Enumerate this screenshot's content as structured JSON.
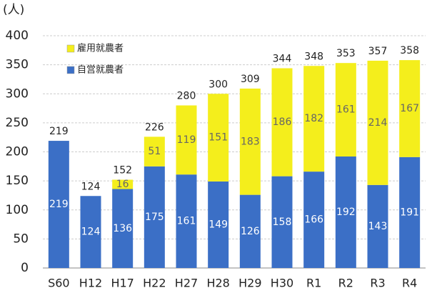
{
  "chart_data": {
    "type": "stacked_bar",
    "y_unit": "(人)",
    "categories": [
      "S60",
      "H12",
      "H17",
      "H22",
      "H27",
      "H28",
      "H29",
      "H30",
      "R1",
      "R2",
      "R3",
      "R4"
    ],
    "series": [
      {
        "name": "自営就農者",
        "color": "#3b6fc6",
        "values": [
          219,
          124,
          136,
          175,
          161,
          149,
          126,
          158,
          166,
          192,
          143,
          191
        ]
      },
      {
        "name": "雇用就農者",
        "color": "#f4ee1c",
        "values": [
          null,
          null,
          16,
          51,
          119,
          151,
          183,
          186,
          182,
          161,
          214,
          167
        ]
      }
    ],
    "totals": [
      219,
      124,
      152,
      226,
      280,
      300,
      309,
      344,
      348,
      353,
      357,
      358
    ],
    "ylim": [
      0,
      400
    ],
    "yticks": [
      0,
      50,
      100,
      150,
      200,
      250,
      300,
      350,
      400
    ],
    "grid": true,
    "legend": "top-left"
  }
}
